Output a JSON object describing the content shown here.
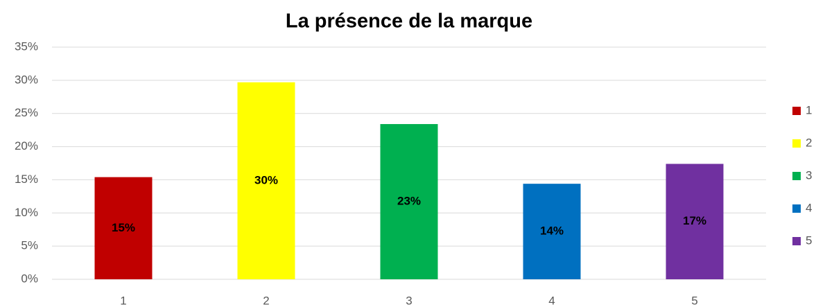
{
  "chart_data": {
    "type": "bar",
    "title": "La présence de la marque",
    "categories": [
      "1",
      "2",
      "3",
      "4",
      "5"
    ],
    "values": [
      15.4,
      29.7,
      23.4,
      14.4,
      17.4
    ],
    "value_labels": [
      "15%",
      "30%",
      "23%",
      "14%",
      "17%"
    ],
    "colors": [
      "#c00000",
      "#ffff00",
      "#00b050",
      "#0070c0",
      "#7030a0"
    ],
    "ylim": [
      0,
      35
    ],
    "yticks": [
      {
        "value": 0,
        "label": "0%"
      },
      {
        "value": 5,
        "label": "5%"
      },
      {
        "value": 10,
        "label": "10%"
      },
      {
        "value": 15,
        "label": "15%"
      },
      {
        "value": 20,
        "label": "20%"
      },
      {
        "value": 25,
        "label": "25%"
      },
      {
        "value": 30,
        "label": "30%"
      },
      {
        "value": 35,
        "label": "35%"
      }
    ],
    "grid": true,
    "legend": "right"
  }
}
